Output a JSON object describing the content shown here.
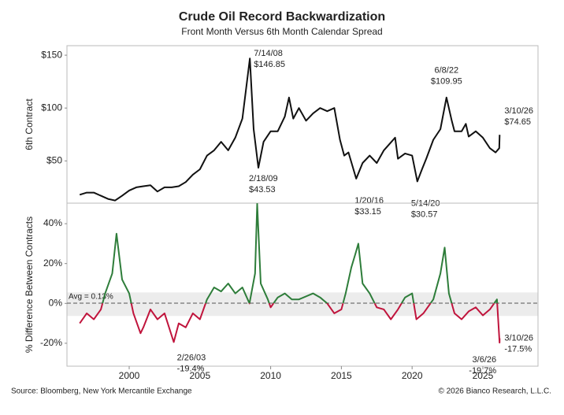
{
  "chart_data": [
    {
      "type": "line",
      "title": "Crude Oil Record Backwardization",
      "subtitle": "Front Month Versus 6th Month Calendar Spread",
      "y_label": "6th Contract",
      "xlim": [
        1995.6,
        2028.9
      ],
      "ylim": [
        10,
        159
      ],
      "yticks": [
        {
          "value": 50,
          "label": "$50"
        },
        {
          "value": 100,
          "label": "$100"
        },
        {
          "value": 150,
          "label": "$150"
        }
      ],
      "series": [
        {
          "color": "#111111",
          "x": [
            1996.5,
            1997,
            1997.5,
            1998,
            1998.5,
            1999,
            1999.5,
            2000,
            2000.5,
            2001,
            2001.5,
            2002,
            2002.5,
            2003,
            2003.5,
            2004,
            2004.5,
            2005,
            2005.5,
            2006,
            2006.5,
            2007,
            2007.5,
            2008,
            2008.53,
            2008.8,
            2009.13,
            2009.5,
            2010,
            2010.5,
            2011,
            2011.3,
            2011.6,
            2012,
            2012.5,
            2013,
            2013.5,
            2014,
            2014.5,
            2014.9,
            2015.2,
            2015.5,
            2016.05,
            2016.5,
            2017,
            2017.5,
            2018,
            2018.8,
            2019,
            2019.5,
            2020,
            2020.37,
            2020.7,
            2021,
            2021.5,
            2022,
            2022.43,
            2022.8,
            2023,
            2023.5,
            2023.8,
            2024,
            2024.5,
            2025,
            2025.5,
            2025.9,
            2026.16,
            2026.19
          ],
          "values": [
            18,
            20,
            20,
            17,
            14,
            12.5,
            17,
            22,
            25,
            26,
            27,
            21,
            25,
            25,
            26,
            30,
            37,
            42,
            55,
            60,
            68,
            60,
            72,
            90,
            146.85,
            80,
            43.53,
            68,
            78,
            78,
            92,
            110,
            90,
            100,
            88,
            95,
            100,
            97,
            100,
            70,
            55,
            58,
            33.15,
            48,
            55,
            48,
            60,
            72,
            52,
            57,
            55,
            30.57,
            42,
            52,
            70,
            80,
            109.95,
            88,
            78,
            78,
            85,
            73,
            78,
            72,
            62,
            58,
            62,
            74.65
          ]
        }
      ],
      "annotations": [
        {
          "date": "7/14/08",
          "label": "$146.85",
          "x": 2008.53,
          "value": 146.85
        },
        {
          "date": "2/18/09",
          "label": "$43.53",
          "x": 2009.13,
          "value": 43.53
        },
        {
          "date": "1/20/16",
          "label": "$33.15",
          "x": 2016.05,
          "value": 33.15
        },
        {
          "date": "5/14/20",
          "label": "$30.57",
          "x": 2020.37,
          "value": 30.57
        },
        {
          "date": "6/8/22",
          "label": "$109.95",
          "x": 2022.43,
          "value": 109.95
        },
        {
          "date": "3/10/26",
          "label": "$74.65",
          "x": 2026.19,
          "value": 74.65
        }
      ]
    },
    {
      "type": "line",
      "y_label": "% Difference Between Contracts",
      "xlim": [
        1995.6,
        2028.9
      ],
      "ylim": [
        -31.5,
        50.3
      ],
      "xticks": [
        2000,
        2005,
        2010,
        2015,
        2020,
        2025
      ],
      "yticks": [
        {
          "value": -20,
          "label": "-20%"
        },
        {
          "value": 0,
          "label": "0%"
        },
        {
          "value": 20,
          "label": "20%"
        },
        {
          "value": 40,
          "label": "40%"
        }
      ],
      "avg": 0.13,
      "avg_label": "Avg = 0.13%",
      "shaded_band": [
        -6.3,
        5.5
      ],
      "series": [
        {
          "color": "#2e7d3a",
          "negative_color": "#c0143c",
          "x": [
            1996.5,
            1997,
            1997.5,
            1998,
            1998.3,
            1998.8,
            1999.1,
            1999.5,
            2000,
            2000.3,
            2000.8,
            2001,
            2001.5,
            2002,
            2002.5,
            2003.15,
            2003.5,
            2004,
            2004.5,
            2005,
            2005.5,
            2006,
            2006.5,
            2007,
            2007.5,
            2008,
            2008.5,
            2008.9,
            2009.05,
            2009.3,
            2009.8,
            2010,
            2010.5,
            2011,
            2011.5,
            2012,
            2013,
            2013.5,
            2014,
            2014.5,
            2015,
            2015.3,
            2015.7,
            2016,
            2016.2,
            2016.5,
            2017,
            2017.5,
            2018,
            2018.5,
            2019,
            2019.5,
            2020,
            2020.3,
            2020.8,
            2021.5,
            2022,
            2022.3,
            2022.6,
            2023,
            2023.5,
            2024,
            2024.5,
            2025,
            2025.5,
            2026,
            2026.18,
            2026.19
          ],
          "values": [
            -10,
            -5,
            -8,
            -3,
            5,
            15,
            35,
            12,
            5,
            -5,
            -15,
            -12,
            -3,
            -8,
            -5,
            -19.4,
            -10,
            -12,
            -5,
            -8,
            2,
            8,
            6,
            10,
            5,
            8,
            0,
            15,
            50,
            10,
            2,
            -2,
            3,
            5,
            2,
            2,
            5,
            3,
            0,
            -5,
            -3,
            5,
            18,
            25,
            30,
            10,
            5,
            -2,
            -3,
            -8,
            -3,
            3,
            5,
            -8,
            -5,
            2,
            15,
            28,
            5,
            -5,
            -8,
            -4,
            -2,
            -6,
            -3,
            2,
            -19.7,
            -17.5
          ]
        }
      ],
      "annotations": [
        {
          "date": "2/26/03",
          "label": "-19.4%",
          "x": 2003.15,
          "value": -19.4
        },
        {
          "date": "3/6/26",
          "label": "-19.7%",
          "x": 2026.18,
          "value": -19.7
        },
        {
          "date": "3/10/26",
          "label": "-17.5%",
          "x": 2026.19,
          "value": -17.5
        }
      ]
    }
  ],
  "footer": {
    "source": "Source: Bloomberg, New York Mercantile Exchange",
    "copyright": "© 2026 Bianco Research, L.L.C."
  }
}
